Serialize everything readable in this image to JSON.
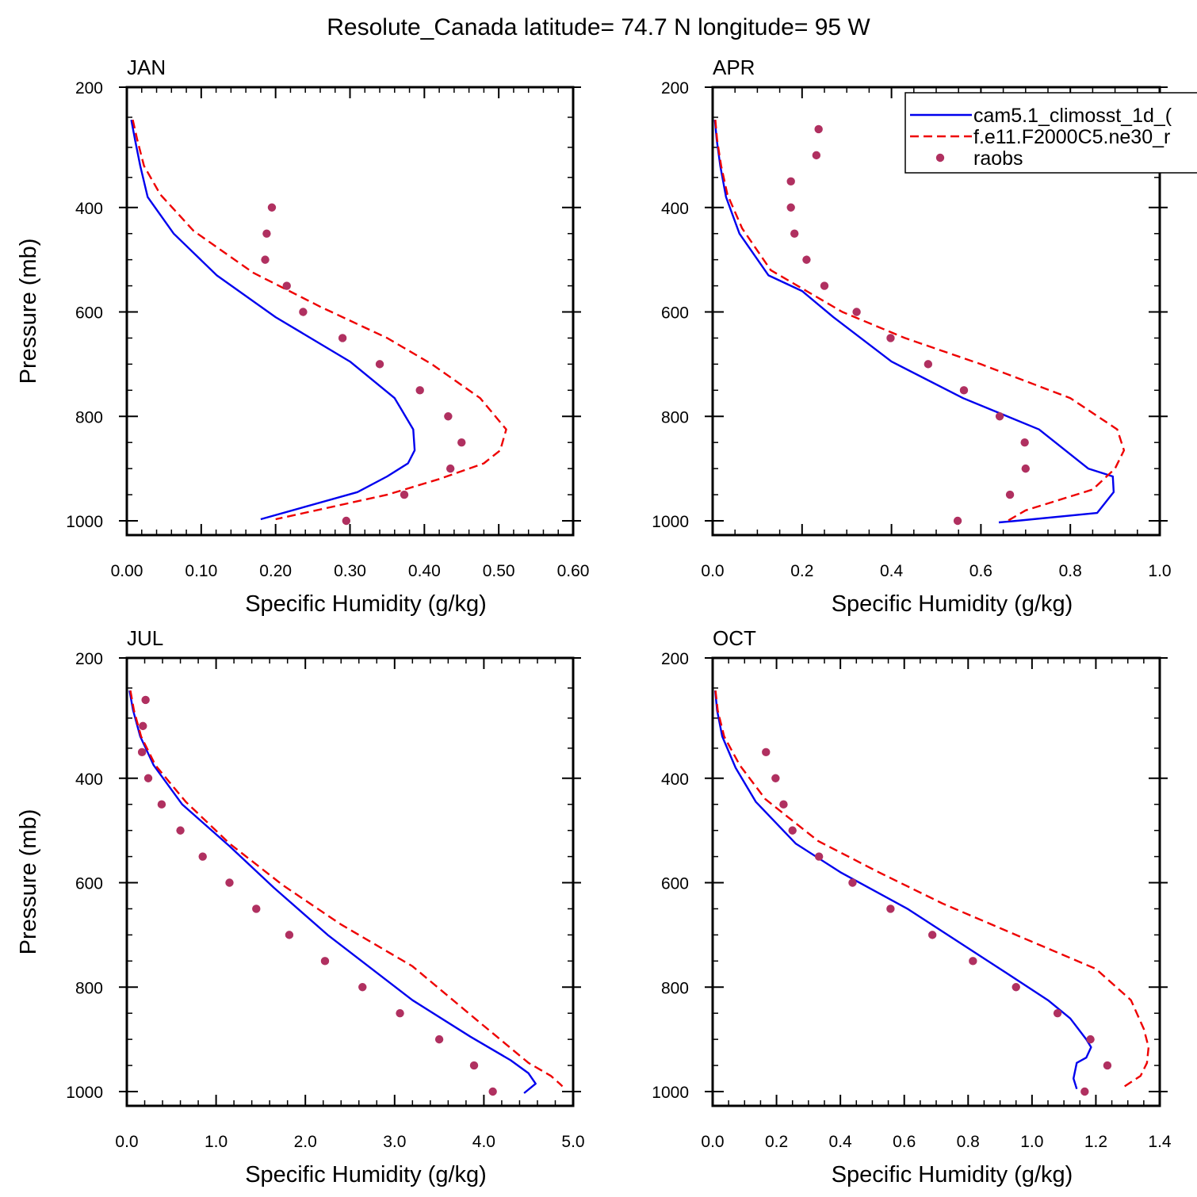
{
  "figure": {
    "title": "Resolute_Canada  latitude= 74.7 N longitude= 95 W"
  },
  "legend": {
    "placement": "top-right of APR panel",
    "entries": [
      {
        "label": "cam5.1_climosst_1d_(",
        "style": "solid",
        "color": "#0000ee"
      },
      {
        "label": "f.e11.F2000C5.ne30_r",
        "style": "dashed",
        "color": "#ee0000"
      },
      {
        "label": "raobs",
        "style": "dots",
        "color": "#b03060"
      }
    ]
  },
  "chart_data": [
    {
      "type": "line",
      "title": "JAN",
      "xlabel": "Specific Humidity (g/kg)",
      "ylabel": "Pressure (mb)",
      "xlim": [
        0,
        0.6
      ],
      "ylim": [
        200,
        1000
      ],
      "y_inverted": true,
      "xticks": [
        "0.00",
        "0.10",
        "0.20",
        "0.30",
        "0.40",
        "0.50",
        "0.60"
      ],
      "yticks": [
        "200",
        "400",
        "600",
        "800",
        "1000"
      ],
      "series": [
        {
          "name": "cam5.1_climosst_1d_(",
          "style": "solid",
          "color": "#0000ee",
          "x": [
            0.006,
            0.011,
            0.018,
            0.028,
            0.063,
            0.121,
            0.2,
            0.3,
            0.36,
            0.385,
            0.387,
            0.378,
            0.35,
            0.31,
            0.18
          ],
          "y": [
            232,
            270,
            320,
            380,
            450,
            530,
            610,
            695,
            765,
            825,
            865,
            890,
            915,
            945,
            997
          ]
        },
        {
          "name": "f.e11.F2000C5.ne30_r",
          "style": "dashed",
          "color": "#ee0000",
          "x": [
            0.008,
            0.014,
            0.023,
            0.045,
            0.09,
            0.17,
            0.26,
            0.35,
            0.41,
            0.475,
            0.51,
            0.502,
            0.48,
            0.42,
            0.35,
            0.2
          ],
          "y": [
            232,
            270,
            320,
            375,
            445,
            525,
            590,
            650,
            700,
            765,
            825,
            865,
            890,
            920,
            950,
            997
          ]
        },
        {
          "name": "raobs",
          "style": "dots",
          "color": "#b03060",
          "x": [
            0.195,
            0.188,
            0.186,
            0.215,
            0.237,
            0.29,
            0.34,
            0.394,
            0.432,
            0.45,
            0.435,
            0.373,
            0.295
          ],
          "y": [
            400,
            450,
            500,
            550,
            600,
            650,
            700,
            750,
            800,
            850,
            900,
            950,
            1000
          ]
        }
      ]
    },
    {
      "type": "line",
      "title": "APR",
      "xlabel": "Specific Humidity (g/kg)",
      "ylabel": "",
      "xlim": [
        0,
        1.0
      ],
      "ylim": [
        200,
        1000
      ],
      "y_inverted": true,
      "xticks": [
        "0.0",
        "0.2",
        "0.4",
        "0.6",
        "0.8",
        "1.0"
      ],
      "yticks": [
        "200",
        "400",
        "600",
        "800",
        "1000"
      ],
      "series": [
        {
          "name": "cam5.1_climosst_1d_(",
          "style": "solid",
          "color": "#0000ee",
          "x": [
            0.005,
            0.009,
            0.017,
            0.03,
            0.06,
            0.125,
            0.2,
            0.27,
            0.4,
            0.56,
            0.73,
            0.84,
            0.895,
            0.897,
            0.86,
            0.68,
            0.64
          ],
          "y": [
            232,
            270,
            320,
            380,
            450,
            530,
            560,
            610,
            695,
            765,
            825,
            900,
            915,
            945,
            985,
            1000,
            1003
          ]
        },
        {
          "name": "f.e11.F2000C5.ne30_r",
          "style": "dashed",
          "color": "#ee0000",
          "x": [
            0.006,
            0.01,
            0.019,
            0.033,
            0.066,
            0.13,
            0.21,
            0.29,
            0.43,
            0.6,
            0.8,
            0.905,
            0.92,
            0.9,
            0.85,
            0.7,
            0.66
          ],
          "y": [
            232,
            270,
            320,
            375,
            440,
            520,
            560,
            600,
            650,
            700,
            765,
            825,
            865,
            900,
            940,
            980,
            1000
          ]
        },
        {
          "name": "raobs",
          "style": "dots",
          "color": "#b03060",
          "x": [
            0.237,
            0.232,
            0.175,
            0.175,
            0.183,
            0.21,
            0.25,
            0.322,
            0.398,
            0.482,
            0.562,
            0.642,
            0.698,
            0.7,
            0.665,
            0.548
          ],
          "y": [
            250,
            300,
            350,
            400,
            450,
            500,
            550,
            600,
            650,
            700,
            750,
            800,
            850,
            900,
            950,
            1000
          ]
        }
      ]
    },
    {
      "type": "line",
      "title": "JUL",
      "xlabel": "Specific Humidity (g/kg)",
      "ylabel": "Pressure (mb)",
      "xlim": [
        0,
        5.0
      ],
      "ylim": [
        200,
        1000
      ],
      "y_inverted": true,
      "xticks": [
        "0.0",
        "1.0",
        "2.0",
        "3.0",
        "4.0",
        "5.0"
      ],
      "yticks": [
        "200",
        "400",
        "600",
        "800",
        "1000"
      ],
      "series": [
        {
          "name": "cam5.1_climosst_1d_(",
          "style": "solid",
          "color": "#0000ee",
          "x": [
            0.03,
            0.07,
            0.15,
            0.3,
            0.62,
            1.15,
            1.65,
            2.25,
            3.2,
            3.85,
            4.3,
            4.5,
            4.58,
            4.45
          ],
          "y": [
            232,
            270,
            320,
            375,
            450,
            530,
            610,
            700,
            825,
            895,
            940,
            965,
            985,
            1003
          ]
        },
        {
          "name": "f.e11.F2000C5.ne30_r",
          "style": "dashed",
          "color": "#ee0000",
          "x": [
            0.04,
            0.08,
            0.16,
            0.32,
            0.66,
            1.15,
            1.75,
            2.4,
            3.2,
            3.9,
            4.5,
            4.75,
            4.85,
            4.88
          ],
          "y": [
            232,
            270,
            320,
            375,
            445,
            525,
            605,
            680,
            760,
            860,
            945,
            970,
            985,
            990
          ]
        },
        {
          "name": "raobs",
          "style": "dots",
          "color": "#b03060",
          "x": [
            0.21,
            0.18,
            0.17,
            0.24,
            0.39,
            0.6,
            0.85,
            1.15,
            1.45,
            1.82,
            2.22,
            2.64,
            3.06,
            3.5,
            3.89,
            4.1
          ],
          "y": [
            250,
            300,
            350,
            400,
            450,
            500,
            550,
            600,
            650,
            700,
            750,
            800,
            850,
            900,
            950,
            1000
          ]
        }
      ]
    },
    {
      "type": "line",
      "title": "OCT",
      "xlabel": "Specific Humidity (g/kg)",
      "ylabel": "",
      "xlim": [
        0,
        1.4
      ],
      "ylim": [
        200,
        1000
      ],
      "y_inverted": true,
      "xticks": [
        "0.0",
        "0.2",
        "0.4",
        "0.6",
        "0.8",
        "1.0",
        "1.2",
        "1.4"
      ],
      "yticks": [
        "200",
        "400",
        "600",
        "800",
        "1000"
      ],
      "series": [
        {
          "name": "cam5.1_climosst_1d_(",
          "style": "solid",
          "color": "#0000ee",
          "x": [
            0.008,
            0.014,
            0.03,
            0.072,
            0.135,
            0.26,
            0.4,
            0.61,
            0.9,
            1.05,
            1.12,
            1.17,
            1.185,
            1.17,
            1.14,
            1.13,
            1.14
          ],
          "y": [
            232,
            270,
            320,
            380,
            445,
            525,
            580,
            650,
            765,
            825,
            860,
            900,
            915,
            935,
            945,
            975,
            995
          ]
        },
        {
          "name": "f.e11.F2000C5.ne30_r",
          "style": "dashed",
          "color": "#ee0000",
          "x": [
            0.009,
            0.016,
            0.036,
            0.085,
            0.165,
            0.33,
            0.52,
            0.72,
            0.95,
            1.2,
            1.31,
            1.35,
            1.365,
            1.36,
            1.34,
            1.29
          ],
          "y": [
            232,
            270,
            320,
            375,
            440,
            520,
            580,
            640,
            700,
            765,
            825,
            880,
            915,
            945,
            970,
            990
          ]
        },
        {
          "name": "raobs",
          "style": "dots",
          "color": "#b03060",
          "x": [
            0.167,
            0.197,
            0.222,
            0.25,
            0.333,
            0.438,
            0.557,
            0.688,
            0.815,
            0.95,
            1.08,
            1.183,
            1.236,
            1.165
          ],
          "y": [
            350,
            400,
            450,
            500,
            550,
            600,
            650,
            700,
            750,
            800,
            850,
            900,
            950,
            1000
          ]
        }
      ]
    }
  ]
}
